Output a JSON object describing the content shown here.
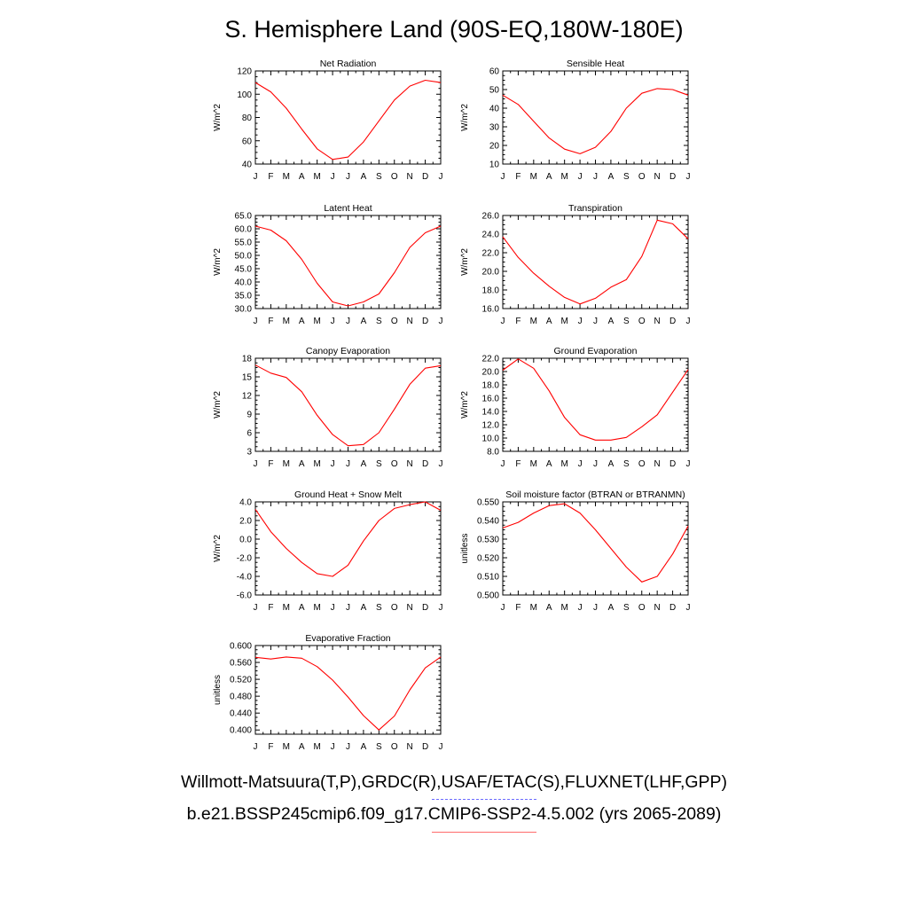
{
  "title": "S. Hemisphere Land (90S-EQ,180W-180E)",
  "legend": {
    "obs_label": "Willmott-Matsuura(T,P),GRDC(R),USAF/ETAC(S),FLUXNET(LHF,GPP)",
    "model_label": "b.e21.BSSP245cmip6.f09_g17.CMIP6-SSP2-4.5.002 (yrs 2065-2089)",
    "obs_color": "#0000ff",
    "model_color": "#ff0000"
  },
  "colors": {
    "series": "#ff0000",
    "axis": "#000000"
  },
  "chart_data": [
    {
      "type": "line",
      "title": "Net Radiation",
      "ylabel": "W/m^2",
      "categories": [
        "J",
        "F",
        "M",
        "A",
        "M",
        "J",
        "J",
        "A",
        "S",
        "O",
        "N",
        "D",
        "J"
      ],
      "ylim": [
        40,
        120
      ],
      "yticks": [
        "40",
        "60",
        "80",
        "100",
        "120"
      ],
      "series": [
        {
          "values": [
            110,
            102,
            88,
            70,
            53,
            44,
            46,
            59,
            77,
            95,
            107,
            112,
            110
          ]
        }
      ]
    },
    {
      "type": "line",
      "title": "Sensible Heat",
      "ylabel": "W/m^2",
      "categories": [
        "J",
        "F",
        "M",
        "A",
        "M",
        "J",
        "J",
        "A",
        "S",
        "O",
        "N",
        "D",
        "J"
      ],
      "ylim": [
        10,
        60
      ],
      "yticks": [
        "10",
        "20",
        "30",
        "40",
        "50",
        "60"
      ],
      "series": [
        {
          "values": [
            47,
            42,
            33,
            24,
            18,
            15.5,
            19,
            27.5,
            40,
            48,
            50.5,
            50,
            47
          ]
        }
      ]
    },
    {
      "type": "line",
      "title": "Latent Heat",
      "ylabel": "W/m^2",
      "categories": [
        "J",
        "F",
        "M",
        "A",
        "M",
        "J",
        "J",
        "A",
        "S",
        "O",
        "N",
        "D",
        "J"
      ],
      "ylim": [
        30,
        65
      ],
      "yticks": [
        "30.0",
        "35.0",
        "40.0",
        "45.0",
        "50.0",
        "55.0",
        "60.0",
        "65.0"
      ],
      "series": [
        {
          "values": [
            61,
            59.5,
            55.5,
            48.5,
            39.5,
            32.5,
            31,
            32.5,
            35.5,
            43.5,
            53,
            58.5,
            61
          ]
        }
      ]
    },
    {
      "type": "line",
      "title": "Transpiration",
      "ylabel": "W/m^2",
      "categories": [
        "J",
        "F",
        "M",
        "A",
        "M",
        "J",
        "J",
        "A",
        "S",
        "O",
        "N",
        "D",
        "J"
      ],
      "ylim": [
        16,
        26
      ],
      "yticks": [
        "16.0",
        "18.0",
        "20.0",
        "22.0",
        "24.0",
        "26.0"
      ],
      "series": [
        {
          "values": [
            23.7,
            21.5,
            19.8,
            18.4,
            17.2,
            16.5,
            17.1,
            18.3,
            19.1,
            21.6,
            25.5,
            25.1,
            23.5
          ]
        }
      ]
    },
    {
      "type": "line",
      "title": "Canopy Evaporation",
      "ylabel": "W/m^2",
      "categories": [
        "J",
        "F",
        "M",
        "A",
        "M",
        "J",
        "J",
        "A",
        "S",
        "O",
        "N",
        "D",
        "J"
      ],
      "ylim": [
        3,
        18
      ],
      "yticks": [
        "3",
        "6",
        "9",
        "12",
        "15",
        "18"
      ],
      "series": [
        {
          "values": [
            16.9,
            15.6,
            14.9,
            12.6,
            8.8,
            5.7,
            3.9,
            4.1,
            6,
            9.8,
            13.8,
            16.4,
            16.8
          ]
        }
      ]
    },
    {
      "type": "line",
      "title": "Ground Evaporation",
      "ylabel": "W/m^2",
      "categories": [
        "J",
        "F",
        "M",
        "A",
        "M",
        "J",
        "J",
        "A",
        "S",
        "O",
        "N",
        "D",
        "J"
      ],
      "ylim": [
        8,
        22
      ],
      "yticks": [
        "8.0",
        "10.0",
        "12.0",
        "14.0",
        "16.0",
        "18.0",
        "20.0",
        "22.0"
      ],
      "series": [
        {
          "values": [
            20.2,
            21.9,
            20.5,
            17.1,
            13.1,
            10.5,
            9.7,
            9.7,
            10.1,
            11.7,
            13.5,
            16.9,
            20.3
          ]
        }
      ]
    },
    {
      "type": "line",
      "title": "Ground Heat + Snow Melt",
      "ylabel": "W/m^2",
      "categories": [
        "J",
        "F",
        "M",
        "A",
        "M",
        "J",
        "J",
        "A",
        "S",
        "O",
        "N",
        "D",
        "J"
      ],
      "ylim": [
        -6,
        4
      ],
      "yticks": [
        "-6.0",
        "-4.0",
        "-2.0",
        "0.0",
        "2.0",
        "4.0"
      ],
      "series": [
        {
          "values": [
            3.2,
            0.8,
            -1,
            -2.5,
            -3.7,
            -4,
            -2.8,
            -0.2,
            2,
            3.3,
            3.7,
            4,
            3.1
          ]
        }
      ]
    },
    {
      "type": "line",
      "title": "Soil moisture factor (BTRAN or BTRANMN)",
      "ylabel": "unitless",
      "categories": [
        "J",
        "F",
        "M",
        "A",
        "M",
        "J",
        "J",
        "A",
        "S",
        "O",
        "N",
        "D",
        "J"
      ],
      "ylim": [
        0.5,
        0.55
      ],
      "yticks": [
        "0.500",
        "0.510",
        "0.520",
        "0.530",
        "0.540",
        "0.550"
      ],
      "series": [
        {
          "values": [
            0.536,
            0.539,
            0.544,
            0.548,
            0.549,
            0.544,
            0.535,
            0.525,
            0.515,
            0.507,
            0.51,
            0.522,
            0.537
          ]
        }
      ]
    },
    {
      "type": "line",
      "title": "Evaporative Fraction",
      "ylabel": "unitless",
      "categories": [
        "J",
        "F",
        "M",
        "A",
        "M",
        "J",
        "J",
        "A",
        "S",
        "O",
        "N",
        "D",
        "J"
      ],
      "ylim": [
        0.39,
        0.6
      ],
      "yticks": [
        "0.400",
        "0.440",
        "0.480",
        "0.520",
        "0.560",
        "0.600"
      ],
      "series": [
        {
          "values": [
            0.572,
            0.568,
            0.573,
            0.57,
            0.55,
            0.518,
            0.478,
            0.434,
            0.4,
            0.433,
            0.495,
            0.547,
            0.573
          ]
        }
      ]
    }
  ]
}
